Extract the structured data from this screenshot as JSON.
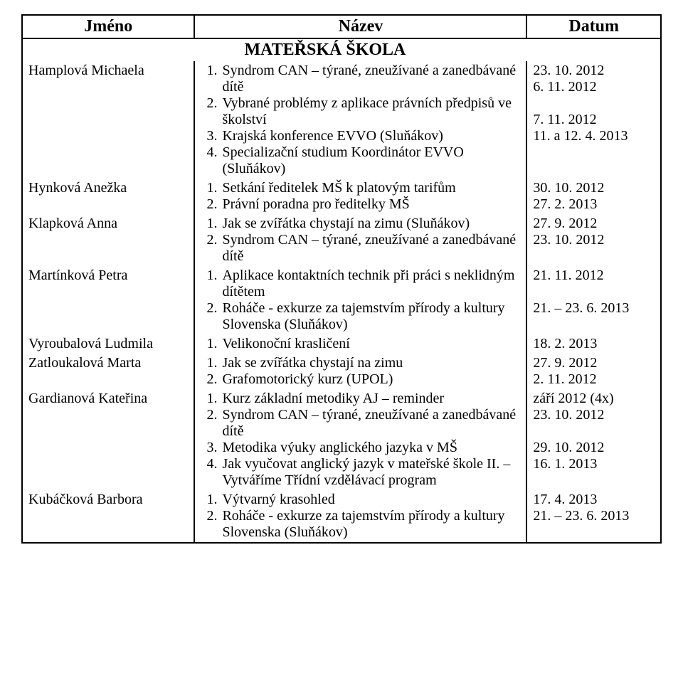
{
  "headers": {
    "jmeno": "Jméno",
    "nazev": "Název",
    "datum": "Datum"
  },
  "section_title": "MATEŘSKÁ ŠKOLA",
  "rows": [
    {
      "name": "Hamplová Michaela",
      "items": [
        "Syndrom CAN – týrané, zneužívané a zanedbávané dítě",
        "Vybrané problémy z aplikace právních předpisů ve školství",
        "Krajská konference EVVO (Sluňákov)",
        "Specializační studium Koordinátor EVVO (Sluňákov)"
      ],
      "dates": [
        "23. 10. 2012",
        "6. 11. 2012",
        "",
        "7. 11. 2012",
        "11. a 12. 4. 2013"
      ]
    },
    {
      "name": "Hynková Anežka",
      "items": [
        "Setkání ředitelek MŠ k platovým tarifům",
        "Právní poradna pro ředitelky MŠ"
      ],
      "dates": [
        "30. 10. 2012",
        "27. 2. 2013"
      ]
    },
    {
      "name": "Klapková Anna",
      "items": [
        "Jak se zvířátka chystají na zimu (Sluňákov)",
        "Syndrom CAN – týrané, zneužívané a zanedbávané dítě"
      ],
      "dates": [
        "27. 9. 2012",
        "23. 10. 2012"
      ]
    },
    {
      "name": "Martínková Petra",
      "items": [
        "Aplikace kontaktních technik při práci s neklidným dítětem",
        "Roháče - exkurze za tajemstvím přírody a kultury Slovenska (Sluňákov)"
      ],
      "dates": [
        "21. 11. 2012",
        "",
        "21. – 23. 6. 2013"
      ]
    },
    {
      "name": "Vyroubalová Ludmila",
      "items": [
        "Velikonoční krasličení"
      ],
      "dates": [
        "18. 2. 2013"
      ]
    },
    {
      "name": "Zatloukalová Marta",
      "items": [
        "Jak se zvířátka chystají na zimu",
        "Grafomotorický kurz (UPOL)"
      ],
      "dates": [
        "27. 9. 2012",
        "2. 11. 2012"
      ]
    },
    {
      "name": "Gardianová Kateřina",
      "items": [
        "Kurz základní metodiky AJ – reminder",
        "Syndrom CAN – týrané, zneužívané a zanedbávané dítě",
        "Metodika výuky anglického jazyka v MŠ",
        "Jak vyučovat anglický jazyk v mateřské škole II. – Vytváříme Třídní vzdělávací program"
      ],
      "dates": [
        "září 2012 (4x)",
        "23. 10. 2012",
        "",
        "29. 10. 2012",
        "16. 1. 2013"
      ]
    },
    {
      "name": "Kubáčková Barbora",
      "items": [
        "Výtvarný krasohled",
        "Roháče - exkurze za tajemstvím přírody a kultury Slovenska (Sluňákov)"
      ],
      "dates": [
        "17. 4. 2013",
        "21. – 23. 6. 2013"
      ]
    }
  ]
}
